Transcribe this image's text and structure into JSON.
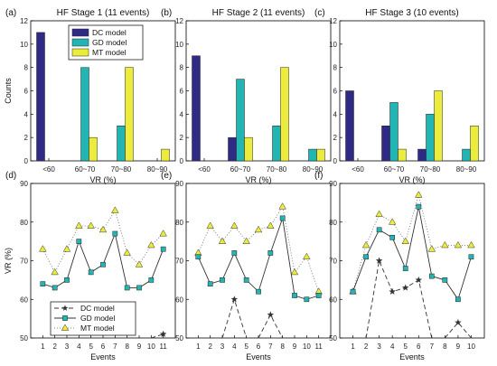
{
  "colors": {
    "dc": "#2e2a86",
    "gd": "#22b5b3",
    "mt": "#ecec3c"
  },
  "legend_labels": {
    "dc": "DC model",
    "gd": "GD model",
    "mt": "MT model"
  },
  "chart_data": [
    {
      "type": "bar",
      "panel_label": "(a)",
      "title": "HF Stage 1 (11 events)",
      "xlabel": "VR (%)",
      "ylabel": "Counts",
      "ylim": [
        0,
        12
      ],
      "yticks": [
        0,
        2,
        4,
        6,
        8,
        10,
        12
      ],
      "categories": [
        "<60",
        "60~70",
        "70~80",
        "80~90"
      ],
      "series": [
        {
          "name": "DC model",
          "key": "dc",
          "values": [
            11,
            0,
            0,
            0
          ]
        },
        {
          "name": "GD model",
          "key": "gd",
          "values": [
            0,
            8,
            3,
            0
          ]
        },
        {
          "name": "MT model",
          "key": "mt",
          "values": [
            0,
            2,
            8,
            1
          ]
        }
      ],
      "legend": "top-center"
    },
    {
      "type": "bar",
      "panel_label": "(b)",
      "title": "HF Stage 2 (11 events)",
      "xlabel": "VR (%)",
      "ylabel": "",
      "ylim": [
        0,
        12
      ],
      "yticks": [
        0,
        2,
        4,
        6,
        8,
        10,
        12
      ],
      "categories": [
        "<60",
        "60~70",
        "70~80",
        "80~90"
      ],
      "series": [
        {
          "name": "DC model",
          "key": "dc",
          "values": [
            9,
            2,
            0,
            0
          ]
        },
        {
          "name": "GD model",
          "key": "gd",
          "values": [
            0,
            7,
            3,
            1
          ]
        },
        {
          "name": "MT model",
          "key": "mt",
          "values": [
            0,
            2,
            8,
            1
          ]
        }
      ]
    },
    {
      "type": "bar",
      "panel_label": "(c)",
      "title": "HF Stage 3 (10 events)",
      "xlabel": "VR (%)",
      "ylabel": "",
      "ylim": [
        0,
        12
      ],
      "yticks": [
        0,
        2,
        4,
        6,
        8,
        10,
        12
      ],
      "categories": [
        "<60",
        "60~70",
        "70~80",
        "80~90"
      ],
      "series": [
        {
          "name": "DC model",
          "key": "dc",
          "values": [
            6,
            3,
            1,
            0
          ]
        },
        {
          "name": "GD model",
          "key": "gd",
          "values": [
            0,
            5,
            4,
            1
          ]
        },
        {
          "name": "MT model",
          "key": "mt",
          "values": [
            0,
            1,
            6,
            3
          ]
        }
      ]
    },
    {
      "type": "line",
      "panel_label": "(d)",
      "title": "",
      "xlabel": "Events",
      "ylabel": "VR (%)",
      "xlim": [
        0,
        12
      ],
      "ylim": [
        50,
        90
      ],
      "yticks": [
        50,
        60,
        70,
        80,
        90
      ],
      "x": [
        1,
        2,
        3,
        4,
        5,
        6,
        7,
        8,
        9,
        10,
        11
      ],
      "series": [
        {
          "name": "DC model",
          "key": "dc",
          "values": [
            null,
            null,
            null,
            null,
            null,
            null,
            null,
            null,
            null,
            null,
            51
          ]
        },
        {
          "name": "GD model",
          "key": "gd",
          "values": [
            64,
            63,
            65,
            75,
            67,
            69,
            77,
            63,
            63,
            65,
            73
          ]
        },
        {
          "name": "MT model",
          "key": "mt",
          "values": [
            73,
            67,
            73,
            79,
            79,
            78,
            83,
            72,
            69,
            74,
            77
          ]
        }
      ],
      "legend": "bottom-center"
    },
    {
      "type": "line",
      "panel_label": "(e)",
      "title": "",
      "xlabel": "Events",
      "ylabel": "",
      "xlim": [
        0,
        12
      ],
      "ylim": [
        50,
        90
      ],
      "yticks": [
        50,
        60,
        70,
        80,
        90
      ],
      "x": [
        1,
        2,
        3,
        4,
        5,
        6,
        7,
        8,
        9,
        10,
        11
      ],
      "series": [
        {
          "name": "DC model",
          "key": "dc",
          "values": [
            null,
            null,
            null,
            60,
            null,
            null,
            56,
            null,
            null,
            null,
            null
          ]
        },
        {
          "name": "GD model",
          "key": "gd",
          "values": [
            71,
            64,
            65,
            72,
            65,
            62,
            72,
            81,
            61,
            60,
            61
          ]
        },
        {
          "name": "MT model",
          "key": "mt",
          "values": [
            72,
            79,
            75,
            79,
            75,
            78,
            79,
            84,
            67,
            71,
            62
          ]
        }
      ]
    },
    {
      "type": "line",
      "panel_label": "(f)",
      "title": "",
      "xlabel": "Events",
      "ylabel": "",
      "xlim": [
        0,
        11
      ],
      "ylim": [
        50,
        90
      ],
      "yticks": [
        50,
        60,
        70,
        80,
        90
      ],
      "x": [
        1,
        2,
        3,
        4,
        5,
        6,
        7,
        8,
        9,
        10
      ],
      "series": [
        {
          "name": "DC model",
          "key": "dc",
          "values": [
            null,
            null,
            70,
            62,
            63,
            65,
            null,
            null,
            54,
            null
          ]
        },
        {
          "name": "GD model",
          "key": "gd",
          "values": [
            62,
            71,
            78,
            76,
            68,
            84,
            66,
            65,
            60,
            71
          ]
        },
        {
          "name": "MT model",
          "key": "mt",
          "values": [
            62,
            74,
            82,
            80,
            75,
            87,
            73,
            74,
            74,
            74
          ]
        }
      ]
    }
  ]
}
